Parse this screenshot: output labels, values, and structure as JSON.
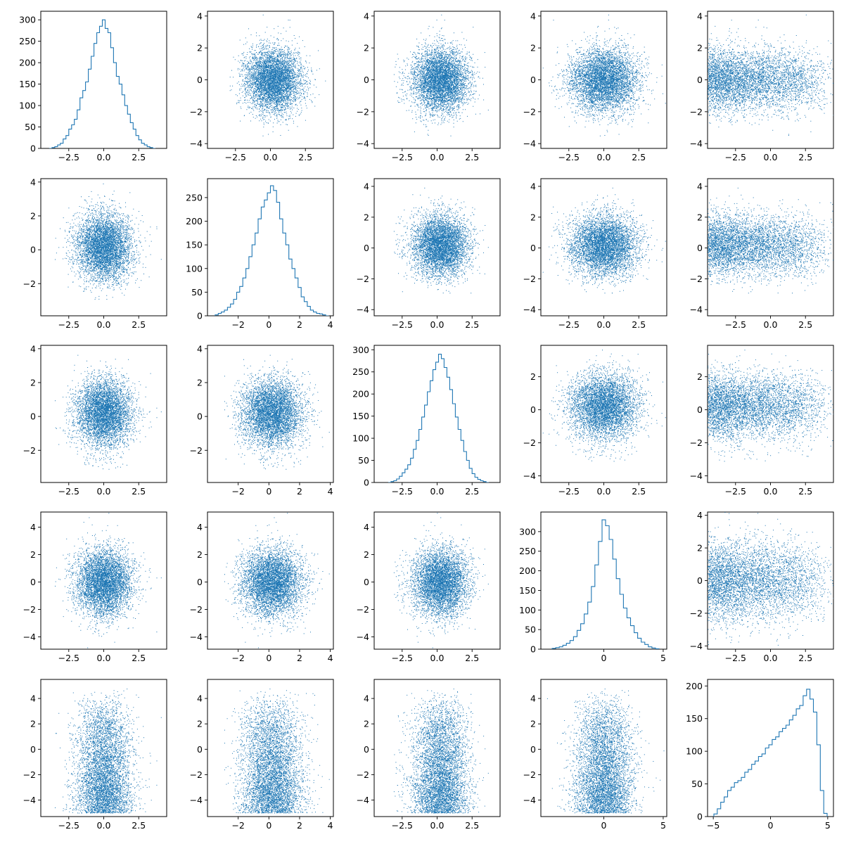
{
  "figure": {
    "title": "",
    "accent_color": "#1f77b4"
  },
  "chart_data": {
    "type": "scatter",
    "layout": "5x5 pair-plot matrix (scatter-matrix)",
    "grid": false,
    "legend": "none",
    "color": "#1f77b4",
    "variables": [
      {
        "name": "",
        "distribution": "normal",
        "mean": 0.0,
        "std": 1.0,
        "points": 10000
      },
      {
        "name": "",
        "distribution": "normal",
        "mean": 0.2,
        "std": 1.0,
        "points": 10000
      },
      {
        "name": "",
        "distribution": "normal",
        "mean": 0.2,
        "std": 1.0,
        "points": 10000
      },
      {
        "name": "",
        "distribution": "normal",
        "mean": 0.0,
        "std": 1.2,
        "points": 10000
      },
      {
        "name": "",
        "distribution": "left-skewed, truncated near 5",
        "mean": 1.5,
        "std": 2.2,
        "points": 10000
      }
    ],
    "panels": [
      {
        "row": 0,
        "col": 0,
        "type": "histogram",
        "xlim": [
          -4.5,
          4.5
        ],
        "ylim": [
          0,
          320
        ],
        "xticks": [
          "-2.5",
          "0.0",
          "2.5"
        ],
        "yticks": [
          "0",
          "50",
          "100",
          "150",
          "200",
          "250",
          "300"
        ],
        "bins_x": [
          -3.8,
          -3.6,
          -3.4,
          -3.2,
          -3.0,
          -2.8,
          -2.6,
          -2.4,
          -2.2,
          -2.0,
          -1.8,
          -1.6,
          -1.4,
          -1.2,
          -1.0,
          -0.8,
          -0.6,
          -0.4,
          -0.2,
          0.0,
          0.2,
          0.4,
          0.6,
          0.8,
          1.0,
          1.2,
          1.4,
          1.6,
          1.8,
          2.0,
          2.2,
          2.4,
          2.6,
          2.8,
          3.0,
          3.2,
          3.4,
          3.6
        ],
        "counts": [
          0,
          2,
          4,
          8,
          12,
          22,
          30,
          45,
          55,
          68,
          90,
          118,
          135,
          155,
          185,
          215,
          245,
          270,
          285,
          300,
          280,
          270,
          235,
          200,
          168,
          150,
          125,
          100,
          80,
          60,
          45,
          30,
          20,
          12,
          8,
          4,
          2,
          0
        ]
      },
      {
        "row": 0,
        "col": 1,
        "type": "scatter",
        "xlim": [
          -4.5,
          4.5
        ],
        "ylim": [
          -4.3,
          4.3
        ],
        "xticks": [
          "-2.5",
          "0.0",
          "2.5"
        ],
        "yticks": [
          "-4",
          "-2",
          "0",
          "2",
          "4"
        ],
        "x_var": 1,
        "y_var": 0
      },
      {
        "row": 0,
        "col": 2,
        "type": "scatter",
        "xlim": [
          -4.5,
          4.5
        ],
        "ylim": [
          -4.3,
          4.3
        ],
        "xticks": [
          "-2.5",
          "0.0",
          "2.5"
        ],
        "yticks": [
          "-4",
          "-2",
          "0",
          "2",
          "4"
        ],
        "x_var": 2,
        "y_var": 0
      },
      {
        "row": 0,
        "col": 3,
        "type": "scatter",
        "xlim": [
          -4.5,
          4.5
        ],
        "ylim": [
          -4.3,
          4.3
        ],
        "xticks": [
          "-2.5",
          "0.0",
          "2.5"
        ],
        "yticks": [
          "-4",
          "-2",
          "0",
          "2",
          "4"
        ],
        "x_var": 3,
        "y_var": 0
      },
      {
        "row": 0,
        "col": 4,
        "type": "scatter",
        "xlim": [
          -4.5,
          4.5
        ],
        "ylim": [
          -4.3,
          4.3
        ],
        "xticks": [
          "-2.5",
          "0.0",
          "2.5"
        ],
        "yticks": [
          "-4",
          "-2",
          "0",
          "2",
          "4"
        ],
        "x_var": 4,
        "y_var": 0
      },
      {
        "row": 1,
        "col": 0,
        "type": "scatter",
        "xlim": [
          -4.5,
          4.5
        ],
        "ylim": [
          -3.9,
          4.2
        ],
        "xticks": [
          "-2.5",
          "0.0",
          "2.5"
        ],
        "yticks": [
          "-2",
          "0",
          "2",
          "4"
        ],
        "x_var": 0,
        "y_var": 1
      },
      {
        "row": 1,
        "col": 1,
        "type": "histogram",
        "xlim": [
          -4.0,
          4.2
        ],
        "ylim": [
          0,
          290
        ],
        "xticks": [
          "-2",
          "0",
          "2",
          "4"
        ],
        "yticks": [
          "0",
          "50",
          "100",
          "150",
          "200",
          "250"
        ],
        "bins_x": [
          -3.4,
          -3.2,
          -3.0,
          -2.8,
          -2.6,
          -2.4,
          -2.2,
          -2.0,
          -1.8,
          -1.6,
          -1.4,
          -1.2,
          -1.0,
          -0.8,
          -0.6,
          -0.4,
          -0.2,
          0.0,
          0.2,
          0.4,
          0.6,
          0.8,
          1.0,
          1.2,
          1.4,
          1.6,
          1.8,
          2.0,
          2.2,
          2.4,
          2.6,
          2.8,
          3.0,
          3.2,
          3.4,
          3.6,
          3.8
        ],
        "counts": [
          2,
          5,
          8,
          12,
          18,
          25,
          35,
          50,
          62,
          80,
          100,
          125,
          150,
          175,
          205,
          230,
          245,
          260,
          275,
          265,
          240,
          205,
          175,
          150,
          120,
          100,
          80,
          60,
          40,
          30,
          20,
          12,
          8,
          5,
          4,
          2,
          0
        ]
      },
      {
        "row": 1,
        "col": 2,
        "type": "scatter",
        "xlim": [
          -4.5,
          4.5
        ],
        "ylim": [
          -4.4,
          4.5
        ],
        "xticks": [
          "-2.5",
          "0.0",
          "2.5"
        ],
        "yticks": [
          "-4",
          "-2",
          "0",
          "2",
          "4"
        ],
        "x_var": 2,
        "y_var": 1
      },
      {
        "row": 1,
        "col": 3,
        "type": "scatter",
        "xlim": [
          -4.5,
          4.5
        ],
        "ylim": [
          -4.4,
          4.5
        ],
        "xticks": [
          "-2.5",
          "0.0",
          "2.5"
        ],
        "yticks": [
          "-4",
          "-2",
          "0",
          "2",
          "4"
        ],
        "x_var": 3,
        "y_var": 1
      },
      {
        "row": 1,
        "col": 4,
        "type": "scatter",
        "xlim": [
          -4.5,
          4.5
        ],
        "ylim": [
          -4.4,
          4.5
        ],
        "xticks": [
          "-2.5",
          "0.0",
          "2.5"
        ],
        "yticks": [
          "-4",
          "-2",
          "0",
          "2",
          "4"
        ],
        "x_var": 4,
        "y_var": 1
      },
      {
        "row": 2,
        "col": 0,
        "type": "scatter",
        "xlim": [
          -4.5,
          4.5
        ],
        "ylim": [
          -3.9,
          4.2
        ],
        "xticks": [
          "-2.5",
          "0.0",
          "2.5"
        ],
        "yticks": [
          "-2",
          "0",
          "2",
          "4"
        ],
        "x_var": 0,
        "y_var": 2
      },
      {
        "row": 2,
        "col": 1,
        "type": "scatter",
        "xlim": [
          -4.0,
          4.2
        ],
        "ylim": [
          -3.9,
          4.2
        ],
        "xticks": [
          "-2",
          "0",
          "2",
          "4"
        ],
        "yticks": [
          "-2",
          "0",
          "2",
          "4"
        ],
        "x_var": 1,
        "y_var": 2
      },
      {
        "row": 2,
        "col": 2,
        "type": "histogram",
        "xlim": [
          -4.5,
          4.5
        ],
        "ylim": [
          0,
          310
        ],
        "xticks": [
          "-2.5",
          "0.0",
          "2.5"
        ],
        "yticks": [
          "0",
          "50",
          "100",
          "150",
          "200",
          "250",
          "300"
        ],
        "bins_x": [
          -3.4,
          -3.2,
          -3.0,
          -2.8,
          -2.6,
          -2.4,
          -2.2,
          -2.0,
          -1.8,
          -1.6,
          -1.4,
          -1.2,
          -1.0,
          -0.8,
          -0.6,
          -0.4,
          -0.2,
          0.0,
          0.2,
          0.4,
          0.6,
          0.8,
          1.0,
          1.2,
          1.4,
          1.6,
          1.8,
          2.0,
          2.2,
          2.4,
          2.6,
          2.8,
          3.0,
          3.2,
          3.4,
          3.6
        ],
        "counts": [
          0,
          2,
          4,
          8,
          14,
          22,
          30,
          40,
          55,
          75,
          95,
          120,
          148,
          175,
          205,
          230,
          255,
          272,
          290,
          280,
          260,
          238,
          210,
          178,
          148,
          120,
          95,
          70,
          50,
          32,
          20,
          12,
          7,
          4,
          2,
          0
        ]
      },
      {
        "row": 2,
        "col": 3,
        "type": "scatter",
        "xlim": [
          -4.5,
          4.5
        ],
        "ylim": [
          -4.4,
          3.9
        ],
        "xticks": [
          "-2.5",
          "0.0",
          "2.5"
        ],
        "yticks": [
          "-4",
          "-2",
          "0",
          "2"
        ],
        "x_var": 3,
        "y_var": 2
      },
      {
        "row": 2,
        "col": 4,
        "type": "scatter",
        "xlim": [
          -4.5,
          4.5
        ],
        "ylim": [
          -4.4,
          3.9
        ],
        "xticks": [
          "-2.5",
          "0.0",
          "2.5"
        ],
        "yticks": [
          "-4",
          "-2",
          "0",
          "2"
        ],
        "x_var": 4,
        "y_var": 2
      },
      {
        "row": 3,
        "col": 0,
        "type": "scatter",
        "xlim": [
          -4.5,
          4.5
        ],
        "ylim": [
          -4.9,
          5.1
        ],
        "xticks": [
          "-2.5",
          "0.0",
          "2.5"
        ],
        "yticks": [
          "-4",
          "-2",
          "0",
          "2",
          "4"
        ],
        "x_var": 0,
        "y_var": 3
      },
      {
        "row": 3,
        "col": 1,
        "type": "scatter",
        "xlim": [
          -4.0,
          4.2
        ],
        "ylim": [
          -4.9,
          5.1
        ],
        "xticks": [
          "-2",
          "0",
          "2",
          "4"
        ],
        "yticks": [
          "-4",
          "-2",
          "0",
          "2",
          "4"
        ],
        "x_var": 1,
        "y_var": 3
      },
      {
        "row": 3,
        "col": 2,
        "type": "scatter",
        "xlim": [
          -4.5,
          4.5
        ],
        "ylim": [
          -4.9,
          5.1
        ],
        "xticks": [
          "-2.5",
          "0.0",
          "2.5"
        ],
        "yticks": [
          "-4",
          "-2",
          "0",
          "2",
          "4"
        ],
        "x_var": 2,
        "y_var": 3
      },
      {
        "row": 3,
        "col": 3,
        "type": "histogram",
        "xlim": [
          -5.3,
          5.3
        ],
        "ylim": [
          0,
          350
        ],
        "xticks": [
          "0",
          "5"
        ],
        "yticks": [
          "0",
          "50",
          "100",
          "150",
          "200",
          "250",
          "300"
        ],
        "bins_x": [
          -4.2,
          -3.9,
          -3.6,
          -3.3,
          -3.0,
          -2.7,
          -2.4,
          -2.1,
          -1.8,
          -1.5,
          -1.2,
          -0.9,
          -0.6,
          -0.3,
          0.0,
          0.3,
          0.6,
          0.9,
          1.2,
          1.5,
          1.8,
          2.1,
          2.4,
          2.7,
          3.0,
          3.3,
          3.6,
          3.9,
          4.2,
          4.5
        ],
        "counts": [
          2,
          4,
          6,
          10,
          15,
          22,
          32,
          48,
          65,
          90,
          120,
          160,
          215,
          275,
          330,
          315,
          280,
          230,
          180,
          140,
          105,
          80,
          60,
          42,
          28,
          18,
          12,
          6,
          3,
          1
        ]
      },
      {
        "row": 3,
        "col": 4,
        "type": "scatter",
        "xlim": [
          -4.5,
          4.5
        ],
        "ylim": [
          -4.2,
          4.2
        ],
        "xticks": [
          "-2.5",
          "0.0",
          "2.5"
        ],
        "yticks": [
          "-4",
          "-2",
          "0",
          "2",
          "4"
        ],
        "x_var": 4,
        "y_var": 3
      },
      {
        "row": 4,
        "col": 0,
        "type": "scatter",
        "xlim": [
          -4.5,
          4.5
        ],
        "ylim": [
          -5.3,
          5.5
        ],
        "xticks": [
          "-2.5",
          "0.0",
          "2.5"
        ],
        "yticks": [
          "-4",
          "-2",
          "0",
          "2",
          "4"
        ],
        "x_var": 0,
        "y_var": 4
      },
      {
        "row": 4,
        "col": 1,
        "type": "scatter",
        "xlim": [
          -4.0,
          4.2
        ],
        "ylim": [
          -5.3,
          5.5
        ],
        "xticks": [
          "-2",
          "0",
          "2",
          "4"
        ],
        "yticks": [
          "-4",
          "-2",
          "0",
          "2",
          "4"
        ],
        "x_var": 1,
        "y_var": 4
      },
      {
        "row": 4,
        "col": 2,
        "type": "scatter",
        "xlim": [
          -4.5,
          4.5
        ],
        "ylim": [
          -5.3,
          5.5
        ],
        "xticks": [
          "-2.5",
          "0.0",
          "2.5"
        ],
        "yticks": [
          "-4",
          "-2",
          "0",
          "2",
          "4"
        ],
        "x_var": 2,
        "y_var": 4
      },
      {
        "row": 4,
        "col": 3,
        "type": "scatter",
        "xlim": [
          -5.3,
          5.3
        ],
        "ylim": [
          -5.3,
          5.5
        ],
        "xticks": [
          "0",
          "5"
        ],
        "yticks": [
          "-4",
          "-2",
          "0",
          "2",
          "4"
        ],
        "x_var": 3,
        "y_var": 4
      },
      {
        "row": 4,
        "col": 4,
        "type": "histogram",
        "xlim": [
          -5.5,
          5.5
        ],
        "ylim": [
          0,
          210
        ],
        "xticks": [
          "-5",
          "0",
          "5"
        ],
        "yticks": [
          "0",
          "50",
          "100",
          "150",
          "200"
        ],
        "bins_x": [
          -4.8,
          -4.5,
          -4.2,
          -3.9,
          -3.6,
          -3.3,
          -3.0,
          -2.7,
          -2.4,
          -2.1,
          -1.8,
          -1.5,
          -1.2,
          -0.9,
          -0.6,
          -0.3,
          0.0,
          0.3,
          0.6,
          0.9,
          1.2,
          1.5,
          1.8,
          2.1,
          2.4,
          2.7,
          3.0,
          3.3,
          3.6,
          3.9,
          4.2,
          4.5,
          4.8
        ],
        "counts": [
          4,
          12,
          22,
          30,
          40,
          45,
          52,
          55,
          60,
          68,
          72,
          80,
          85,
          92,
          96,
          105,
          110,
          118,
          122,
          130,
          135,
          140,
          148,
          155,
          165,
          170,
          185,
          195,
          180,
          160,
          110,
          40,
          5
        ]
      }
    ]
  }
}
